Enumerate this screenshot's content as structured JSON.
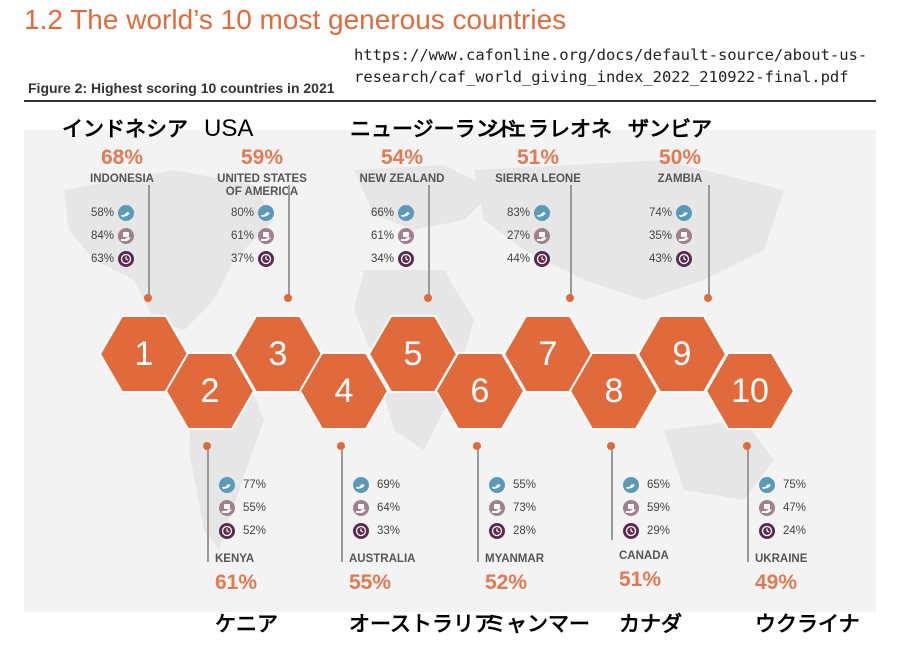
{
  "header": {
    "title": "1.2  The world’s 10 most generous countries",
    "url_line1": "https://www.cafonline.org/docs/default-source/about-us-",
    "url_line2": "research/caf_world_giving_index_2022_210922-final.pdf",
    "subtitle": "Figure 2: Highest scoring 10 countries in 2021"
  },
  "colors": {
    "accent": "#e06a3c",
    "hex_fill": "#e06a3c",
    "help_icon": "#5a9ab8",
    "give_icon": "#a07f8f",
    "time_icon": "#5b2b4e"
  },
  "chart_data": {
    "type": "table",
    "countries": [
      {
        "rank": "1",
        "jp": "インドネシア",
        "name": "INDONESIA",
        "score": "68%",
        "help": "58%",
        "give": "84%",
        "time": "63%"
      },
      {
        "rank": "2",
        "jp": "ケニア",
        "name": "KENYA",
        "score": "61%",
        "help": "77%",
        "give": "55%",
        "time": "52%"
      },
      {
        "rank": "3",
        "jp": "USA",
        "name_l1": "UNITED STATES",
        "name_l2": "OF AMERICA",
        "score": "59%",
        "help": "80%",
        "give": "61%",
        "time": "37%"
      },
      {
        "rank": "4",
        "jp": "オーストラリア",
        "name": "AUSTRALIA",
        "score": "55%",
        "help": "69%",
        "give": "64%",
        "time": "33%"
      },
      {
        "rank": "5",
        "jp": "ニュージーランド",
        "name": "NEW ZEALAND",
        "score": "54%",
        "help": "66%",
        "give": "61%",
        "time": "34%"
      },
      {
        "rank": "6",
        "jp": "ミャンマー",
        "name": "MYANMAR",
        "score": "52%",
        "help": "55%",
        "give": "73%",
        "time": "28%"
      },
      {
        "rank": "7",
        "jp": "シェラレオネ",
        "name": "SIERRA LEONE",
        "score": "51%",
        "help": "83%",
        "give": "27%",
        "time": "44%"
      },
      {
        "rank": "8",
        "jp": "カナダ",
        "name": "CANADA",
        "score": "51%",
        "help": "65%",
        "give": "59%",
        "time": "29%"
      },
      {
        "rank": "9",
        "jp": "ザンビア",
        "name": "ZAMBIA",
        "score": "50%",
        "help": "74%",
        "give": "35%",
        "time": "43%"
      },
      {
        "rank": "10",
        "jp": "ウクライナ",
        "name": "UKRAINE",
        "score": "49%",
        "help": "75%",
        "give": "47%",
        "time": "24%"
      }
    ]
  }
}
